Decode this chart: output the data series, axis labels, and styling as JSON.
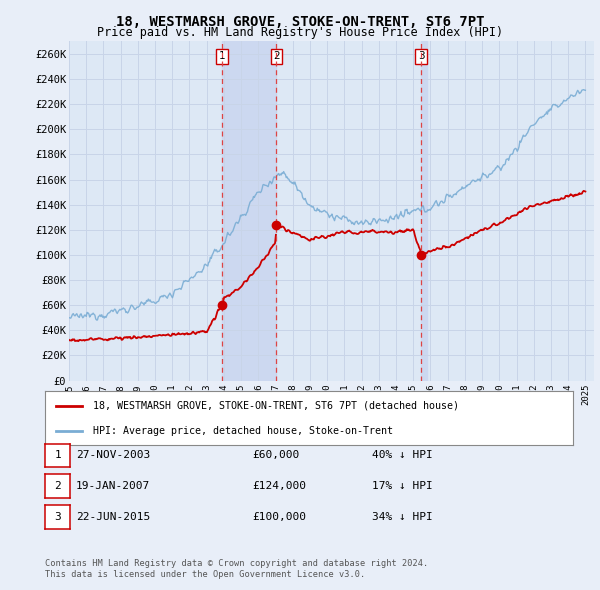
{
  "title": "18, WESTMARSH GROVE, STOKE-ON-TRENT, ST6 7PT",
  "subtitle": "Price paid vs. HM Land Registry's House Price Index (HPI)",
  "ylim": [
    0,
    270000
  ],
  "yticks": [
    0,
    20000,
    40000,
    60000,
    80000,
    100000,
    120000,
    140000,
    160000,
    180000,
    200000,
    220000,
    240000,
    260000
  ],
  "ytick_labels": [
    "£0",
    "£20K",
    "£40K",
    "£60K",
    "£80K",
    "£100K",
    "£120K",
    "£140K",
    "£160K",
    "£180K",
    "£200K",
    "£220K",
    "£240K",
    "£260K"
  ],
  "hpi_color": "#7aadd4",
  "price_color": "#cc0000",
  "vline_color": "#dd4444",
  "background_color": "#e8eef8",
  "plot_bg_color": "#dde8f5",
  "grid_color": "#c8d4e8",
  "shade_color": "#ccd8f0",
  "sale_dates": [
    2003.9,
    2007.05,
    2015.47
  ],
  "sale_prices": [
    60000,
    124000,
    100000
  ],
  "sale_labels": [
    "1",
    "2",
    "3"
  ],
  "legend_entries": [
    {
      "label": "18, WESTMARSH GROVE, STOKE-ON-TRENT, ST6 7PT (detached house)",
      "color": "#cc0000"
    },
    {
      "label": "HPI: Average price, detached house, Stoke-on-Trent",
      "color": "#7aadd4"
    }
  ],
  "table_rows": [
    {
      "num": "1",
      "date": "27-NOV-2003",
      "price": "£60,000",
      "hpi": "40% ↓ HPI"
    },
    {
      "num": "2",
      "date": "19-JAN-2007",
      "price": "£124,000",
      "hpi": "17% ↓ HPI"
    },
    {
      "num": "3",
      "date": "22-JUN-2015",
      "price": "£100,000",
      "hpi": "34% ↓ HPI"
    }
  ],
  "footnote1": "Contains HM Land Registry data © Crown copyright and database right 2024.",
  "footnote2": "This data is licensed under the Open Government Licence v3.0."
}
